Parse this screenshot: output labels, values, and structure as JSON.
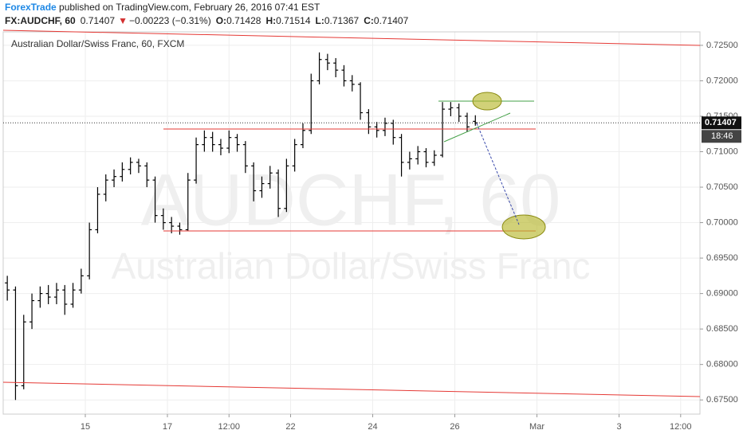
{
  "header": {
    "publisher": "ForexTrade",
    "published": " published on TradingView.com, February 26, 2016 07:41 EST",
    "symbol": "FX:AUDCHF, 60",
    "arrow": "▼",
    "change": "−0.00223 (−0.31%)",
    "o_label": "O:",
    "h_label": "H:",
    "l_label": "L:",
    "c_label": "C:"
  },
  "chart_data": {
    "type": "ohlc",
    "title": "Australian Dollar/Swiss Franc, 60, FXCM",
    "watermark": "AUDCHF, 60",
    "watermark_sub": "Australian Dollar/Swiss Franc",
    "time_label": "18:46",
    "color": "#000000",
    "grid": true,
    "x": [
      0.1,
      0.3,
      0.5,
      0.7,
      0.9,
      1.1,
      1.3,
      1.5,
      1.7,
      1.9,
      2.1,
      2.3,
      2.5,
      2.7,
      2.9,
      3.1,
      3.3,
      3.5,
      3.7,
      3.9,
      4.1,
      4.3,
      4.5,
      4.7,
      4.9,
      5.1,
      5.3,
      5.5,
      5.7,
      5.9,
      6.1,
      6.3,
      6.5,
      6.7,
      6.9,
      7.1,
      7.3,
      7.5,
      7.7,
      7.9,
      8.1,
      8.3,
      8.5,
      8.7,
      8.9,
      9.1,
      9.3,
      9.5,
      9.7,
      9.9,
      10.1,
      10.3,
      10.5,
      10.7,
      10.9,
      11.1,
      11.3,
      11.5
    ],
    "open": [
      0.6915,
      0.6905,
      0.677,
      0.686,
      0.689,
      0.69,
      0.6895,
      0.6905,
      0.6885,
      0.6905,
      0.6925,
      0.699,
      0.704,
      0.706,
      0.7065,
      0.7075,
      0.7085,
      0.708,
      0.706,
      0.701,
      0.7,
      0.6995,
      0.699,
      0.706,
      0.711,
      0.712,
      0.711,
      0.7105,
      0.712,
      0.711,
      0.708,
      0.7045,
      0.7055,
      0.707,
      0.702,
      0.708,
      0.711,
      0.713,
      0.72,
      0.723,
      0.7225,
      0.7215,
      0.72,
      0.7195,
      0.7155,
      0.7135,
      0.713,
      0.714,
      0.712,
      0.7085,
      0.709,
      0.71,
      0.7085,
      0.7095,
      0.716,
      0.7162,
      0.715,
      0.71428
    ],
    "high": [
      0.6925,
      0.691,
      0.687,
      0.69,
      0.691,
      0.6912,
      0.6915,
      0.6912,
      0.6915,
      0.6935,
      0.7,
      0.705,
      0.7068,
      0.7075,
      0.7085,
      0.7092,
      0.709,
      0.7085,
      0.7065,
      0.702,
      0.7008,
      0.7,
      0.707,
      0.712,
      0.713,
      0.7128,
      0.7118,
      0.713,
      0.7125,
      0.7115,
      0.7085,
      0.7065,
      0.708,
      0.7075,
      0.709,
      0.7118,
      0.714,
      0.721,
      0.724,
      0.7238,
      0.7232,
      0.7222,
      0.7208,
      0.7198,
      0.716,
      0.7142,
      0.7148,
      0.7145,
      0.7125,
      0.71,
      0.7108,
      0.7105,
      0.7102,
      0.717,
      0.717,
      0.7168,
      0.7155,
      0.71514
    ],
    "low": [
      0.689,
      0.675,
      0.6765,
      0.685,
      0.688,
      0.6885,
      0.6885,
      0.687,
      0.688,
      0.69,
      0.692,
      0.6985,
      0.703,
      0.705,
      0.7058,
      0.7068,
      0.707,
      0.705,
      0.7,
      0.699,
      0.6985,
      0.6983,
      0.6988,
      0.7055,
      0.71,
      0.71,
      0.7095,
      0.7098,
      0.71,
      0.707,
      0.703,
      0.7035,
      0.7048,
      0.7008,
      0.7015,
      0.7072,
      0.7105,
      0.7125,
      0.7195,
      0.7215,
      0.7205,
      0.7192,
      0.7185,
      0.7145,
      0.7125,
      0.712,
      0.7122,
      0.711,
      0.7065,
      0.7075,
      0.7082,
      0.7078,
      0.708,
      0.7092,
      0.715,
      0.7142,
      0.7128,
      0.71367
    ],
    "close": [
      0.6905,
      0.677,
      0.686,
      0.689,
      0.69,
      0.6895,
      0.6905,
      0.6885,
      0.6905,
      0.6925,
      0.699,
      0.704,
      0.706,
      0.7065,
      0.7075,
      0.7085,
      0.708,
      0.706,
      0.701,
      0.7,
      0.6995,
      0.699,
      0.706,
      0.711,
      0.712,
      0.711,
      0.7105,
      0.712,
      0.711,
      0.708,
      0.7045,
      0.7055,
      0.707,
      0.702,
      0.708,
      0.711,
      0.713,
      0.72,
      0.723,
      0.7225,
      0.7215,
      0.72,
      0.7195,
      0.7155,
      0.7135,
      0.713,
      0.714,
      0.712,
      0.7085,
      0.709,
      0.71,
      0.7085,
      0.7095,
      0.716,
      0.7162,
      0.715,
      0.7135,
      0.71407
    ],
    "xlim": [
      0,
      16.97
    ],
    "ylim": [
      0.673,
      0.7269
    ],
    "xticks": [
      {
        "value": 2,
        "label": "15"
      },
      {
        "value": 4,
        "label": "17"
      },
      {
        "value": 5.5,
        "label": "12:00"
      },
      {
        "value": 7,
        "label": "22"
      },
      {
        "value": 9,
        "label": "24"
      },
      {
        "value": 11,
        "label": "26"
      },
      {
        "value": 13,
        "label": "Mar"
      },
      {
        "value": 15,
        "label": "3"
      },
      {
        "value": 16.5,
        "label": "12:00"
      }
    ],
    "yticks": [
      {
        "value": 0.675,
        "label": "0.67500"
      },
      {
        "value": 0.68,
        "label": "0.68000"
      },
      {
        "value": 0.685,
        "label": "0.68500"
      },
      {
        "value": 0.69,
        "label": "0.69000"
      },
      {
        "value": 0.695,
        "label": "0.69500"
      },
      {
        "value": 0.7,
        "label": "0.70000"
      },
      {
        "value": 0.705,
        "label": "0.70500"
      },
      {
        "value": 0.71,
        "label": "0.71000"
      },
      {
        "value": 0.715,
        "label": "0.71500"
      },
      {
        "value": 0.72,
        "label": "0.72000"
      },
      {
        "value": 0.725,
        "label": "0.72500"
      }
    ]
  }
}
